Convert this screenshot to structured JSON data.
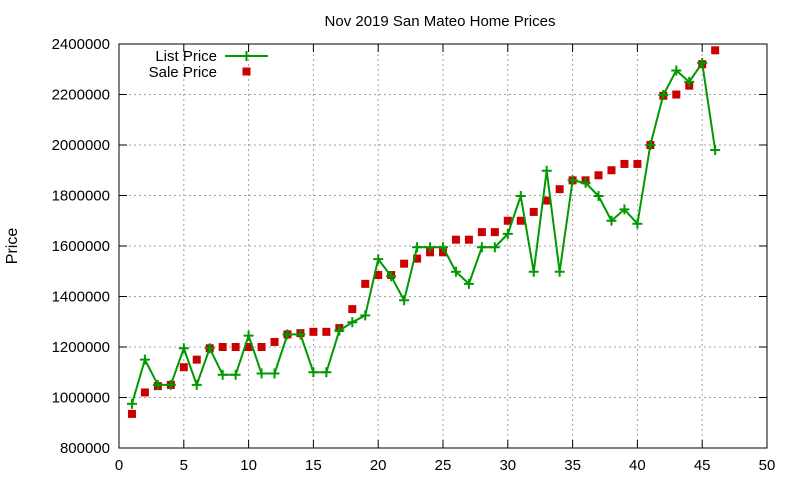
{
  "chart_data": {
    "type": "line",
    "title": "Nov 2019 San Mateo Home Prices",
    "xlabel": "",
    "ylabel": "Price",
    "xlim": [
      0,
      50
    ],
    "ylim": [
      800000,
      2400000
    ],
    "xticks": [
      0,
      5,
      10,
      15,
      20,
      25,
      30,
      35,
      40,
      45,
      50
    ],
    "yticks": [
      800000,
      1000000,
      1200000,
      1400000,
      1600000,
      1800000,
      2000000,
      2200000,
      2400000
    ],
    "grid": true,
    "legend_position": "top-left",
    "series": [
      {
        "name": "List Price",
        "style": "line+cross",
        "color": "#009900",
        "x": [
          1,
          2,
          3,
          4,
          5,
          6,
          7,
          8,
          9,
          10,
          11,
          12,
          13,
          14,
          15,
          16,
          17,
          18,
          19,
          20,
          21,
          22,
          23,
          24,
          25,
          26,
          27,
          28,
          29,
          30,
          31,
          32,
          33,
          34,
          35,
          36,
          37,
          38,
          39,
          40,
          41,
          42,
          43,
          44,
          45,
          46
        ],
        "y": [
          975000,
          1150000,
          1050000,
          1050000,
          1195000,
          1050000,
          1195000,
          1090000,
          1090000,
          1245000,
          1095000,
          1095000,
          1250000,
          1250000,
          1100000,
          1100000,
          1265000,
          1298000,
          1325000,
          1548000,
          1480000,
          1385000,
          1595000,
          1595000,
          1595000,
          1498000,
          1450000,
          1595000,
          1595000,
          1648000,
          1798000,
          1498000,
          1898000,
          1498000,
          1860000,
          1850000,
          1798000,
          1700000,
          1745000,
          1688000,
          2000000,
          2198000,
          2295000,
          2250000,
          2325000,
          1980000
        ]
      },
      {
        "name": "Sale Price",
        "style": "points",
        "color": "#cc0000",
        "x": [
          1,
          2,
          3,
          4,
          5,
          6,
          7,
          8,
          9,
          10,
          11,
          12,
          13,
          14,
          15,
          16,
          17,
          18,
          19,
          20,
          21,
          22,
          23,
          24,
          25,
          26,
          27,
          28,
          29,
          30,
          31,
          32,
          33,
          34,
          35,
          36,
          37,
          38,
          39,
          40,
          41,
          42,
          43,
          44,
          45,
          46
        ],
        "y": [
          935000,
          1020000,
          1045000,
          1050000,
          1120000,
          1150000,
          1195000,
          1200000,
          1200000,
          1200000,
          1200000,
          1220000,
          1250000,
          1255000,
          1260000,
          1260000,
          1275000,
          1350000,
          1450000,
          1485000,
          1485000,
          1530000,
          1550000,
          1575000,
          1575000,
          1625000,
          1625000,
          1655000,
          1655000,
          1700000,
          1700000,
          1735000,
          1780000,
          1825000,
          1860000,
          1860000,
          1880000,
          1900000,
          1925000,
          1925000,
          2000000,
          2195000,
          2200000,
          2235000,
          2320000,
          2375000
        ]
      }
    ]
  }
}
